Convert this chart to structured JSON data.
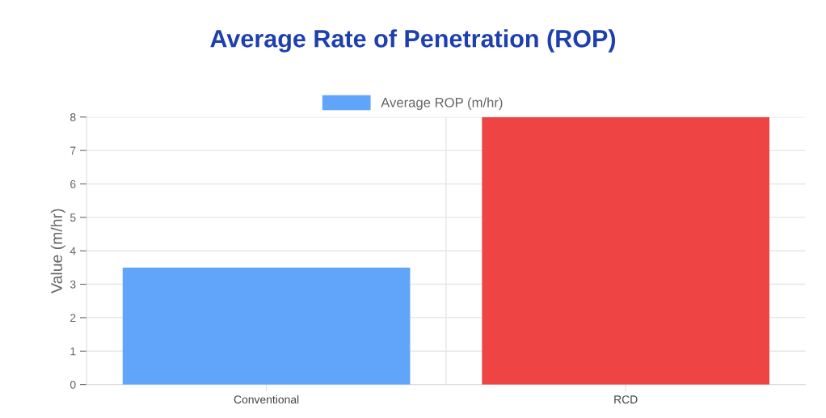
{
  "chart_data": {
    "type": "bar",
    "title": "Average Rate of Penetration (ROP)",
    "ylabel": "Value (m/hr)",
    "categories": [
      "Conventional",
      "RCD"
    ],
    "series": [
      {
        "name": "Average ROP (m/hr)",
        "colors": [
          "#60a5fa",
          "#ef4444"
        ],
        "values": [
          3.5,
          8
        ]
      }
    ],
    "ylim": [
      0,
      8
    ],
    "yticks": [
      0,
      1,
      2,
      3,
      4,
      5,
      6,
      7,
      8
    ],
    "grid": true,
    "legend": "top"
  }
}
